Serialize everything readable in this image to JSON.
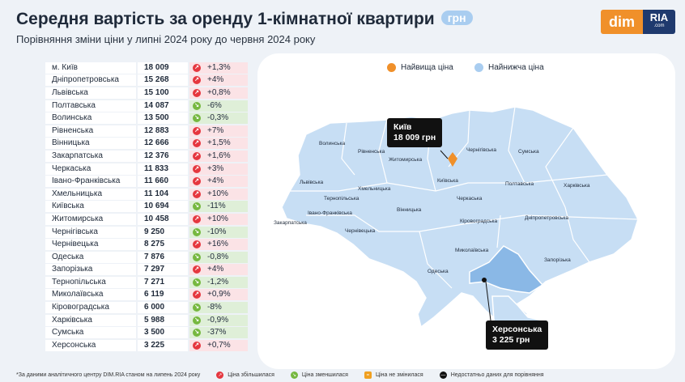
{
  "header": {
    "title": "Середня вартість за оренду 1-кімнатної квартири",
    "unit": "грн",
    "subtitle": "Порівняння зміни ціни у липні 2024 року до червня 2024 року"
  },
  "logo": {
    "dim": "dim",
    "ria": "RIA",
    "ria_sub": ".com"
  },
  "colors": {
    "up": "#e5373f",
    "down": "#76b840",
    "highest": "#f0902a",
    "lowest": "#a9cdf0",
    "map_fill": "#c7def4"
  },
  "rows": [
    {
      "region": "м. Київ",
      "price": "18 009",
      "change": "+1,3%",
      "dir": "up"
    },
    {
      "region": "Дніпропетровська",
      "price": "15 268",
      "change": "+4%",
      "dir": "up"
    },
    {
      "region": "Львівська",
      "price": "15 100",
      "change": "+0,8%",
      "dir": "up"
    },
    {
      "region": "Полтавська",
      "price": "14 087",
      "change": "-6%",
      "dir": "down"
    },
    {
      "region": "Волинська",
      "price": "13 500",
      "change": "-0,3%",
      "dir": "down"
    },
    {
      "region": "Рівненська",
      "price": "12 883",
      "change": "+7%",
      "dir": "up"
    },
    {
      "region": "Вінницька",
      "price": "12 666",
      "change": "+1,5%",
      "dir": "up"
    },
    {
      "region": "Закарпатська",
      "price": "12 376",
      "change": "+1,6%",
      "dir": "up"
    },
    {
      "region": "Черкаська",
      "price": "11 833",
      "change": "+3%",
      "dir": "up"
    },
    {
      "region": "Івано-Франківська",
      "price": "11 660",
      "change": "+4%",
      "dir": "up"
    },
    {
      "region": "Хмельницька",
      "price": "11 104",
      "change": "+10%",
      "dir": "up"
    },
    {
      "region": "Київська",
      "price": "10 694",
      "change": "-11%",
      "dir": "down"
    },
    {
      "region": "Житомирська",
      "price": "10 458",
      "change": "+10%",
      "dir": "up"
    },
    {
      "region": "Чернігівська",
      "price": "9 250",
      "change": "-10%",
      "dir": "down"
    },
    {
      "region": "Чернівецька",
      "price": "8 275",
      "change": "+16%",
      "dir": "up"
    },
    {
      "region": "Одеська",
      "price": "7 876",
      "change": "-0,8%",
      "dir": "down"
    },
    {
      "region": "Запорізька",
      "price": "7 297",
      "change": "+4%",
      "dir": "up"
    },
    {
      "region": "Тернопільська",
      "price": "7 271",
      "change": "-1,2%",
      "dir": "down"
    },
    {
      "region": "Миколаївська",
      "price": "6 119",
      "change": "+0,9%",
      "dir": "up"
    },
    {
      "region": "Кіровоградська",
      "price": "6 000",
      "change": "-8%",
      "dir": "down"
    },
    {
      "region": "Харківська",
      "price": "5 988",
      "change": "-0,9%",
      "dir": "down"
    },
    {
      "region": "Сумська",
      "price": "3 500",
      "change": "-37%",
      "dir": "down"
    },
    {
      "region": "Херсонська",
      "price": "3 225",
      "change": "+0,7%",
      "dir": "up"
    }
  ],
  "map": {
    "legend_highest": "Найвища ціна",
    "legend_lowest": "Найнижча ціна",
    "highest_city": "Київ",
    "highest_price": "18 009 грн",
    "lowest_city": "Херсонська",
    "lowest_price": "3 225 грн",
    "region_labels": [
      "Волинська",
      "Рівненська",
      "Житомирська",
      "Київська",
      "Чернігівська",
      "Сумська",
      "Харківська",
      "Полтавська",
      "Львівська",
      "Тернопільська",
      "Хмельницька",
      "Закарпатська",
      "Івано-Франківська",
      "Чернівецька",
      "Вінницька",
      "Черкаська",
      "Кіровоградська",
      "Дніпропетровська",
      "Миколаївська",
      "Одеська",
      "Запорізька"
    ]
  },
  "footer": {
    "note": "*За даними аналітичного центру DIM.RIA станом на липень 2024 року",
    "up": "Ціна збільшилася",
    "down": "Ціна зменшилася",
    "same": "Ціна не змінилася",
    "nodata": "Недостатньо даних для порівняння"
  }
}
